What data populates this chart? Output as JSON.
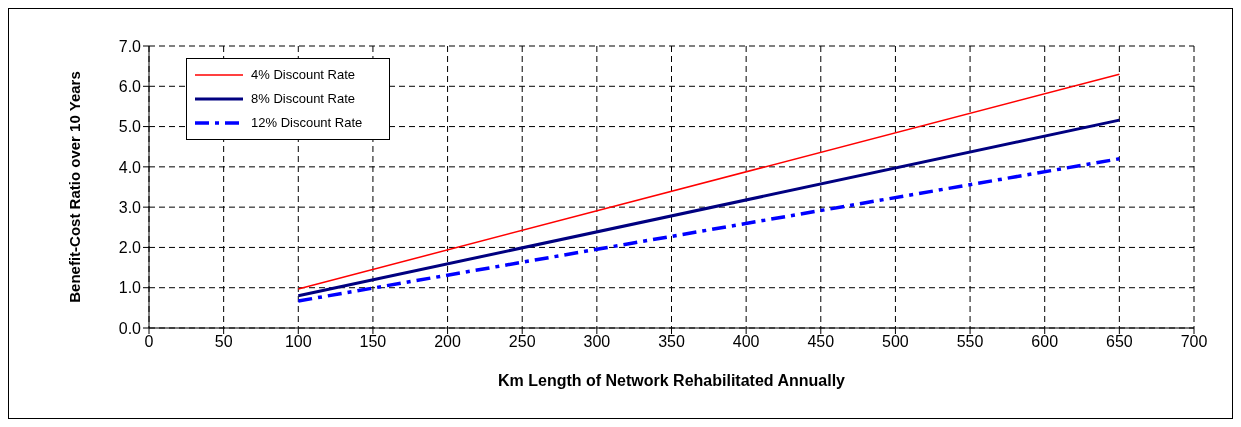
{
  "chart_data": {
    "type": "line",
    "xlabel": "Km Length of Network Rehabilitated Annually",
    "ylabel": "Benefit-Cost Ratio over 10 Years",
    "x": [
      100,
      650
    ],
    "series": [
      {
        "name": "4% Discount Rate",
        "color": "#ff0000",
        "values": [
          0.97,
          6.3
        ],
        "line_style": "solid"
      },
      {
        "name": "8% Discount Rate",
        "color": "#000080",
        "values": [
          0.8,
          5.16
        ],
        "line_style": "solid"
      },
      {
        "name": "12% Discount Rate",
        "color": "#0000ff",
        "values": [
          0.67,
          4.2
        ],
        "line_style": "dashed"
      }
    ],
    "xlim": [
      0,
      700
    ],
    "xticks": [
      0,
      50,
      100,
      150,
      200,
      250,
      300,
      350,
      400,
      450,
      500,
      550,
      600,
      650,
      700
    ],
    "ylim": [
      0,
      7
    ],
    "yticks": [
      {
        "value": 0,
        "label": "0.0"
      },
      {
        "value": 1,
        "label": "1.0"
      },
      {
        "value": 2,
        "label": "2.0"
      },
      {
        "value": 3,
        "label": "3.0"
      },
      {
        "value": 4,
        "label": "4.0"
      },
      {
        "value": 5,
        "label": "5.0"
      },
      {
        "value": 6,
        "label": "6.0"
      },
      {
        "value": 7,
        "label": "7.0"
      }
    ],
    "grid": true,
    "legend": "top left",
    "marker": "none"
  }
}
